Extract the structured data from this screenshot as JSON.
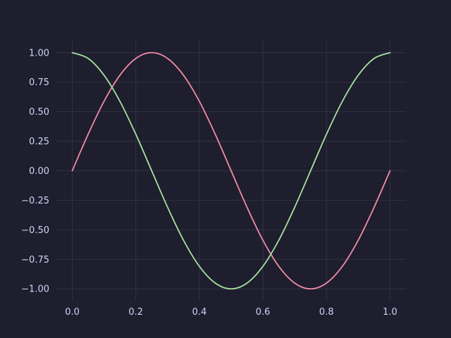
{
  "colors": {
    "background": "#1e1e2e",
    "plot_background": "#1e1e2e",
    "grid": "#313244",
    "text": "#cdd6f4",
    "series_sin": "#f38ba8",
    "series_cos": "#a6e3a1"
  },
  "chart_data": {
    "type": "line",
    "title": "",
    "xlabel": "",
    "ylabel": "",
    "xlim": [
      -0.05,
      1.05
    ],
    "ylim": [
      -1.1,
      1.1
    ],
    "grid": true,
    "legend": "none",
    "x_ticks": [
      {
        "value": 0.0,
        "label": "0.0"
      },
      {
        "value": 0.2,
        "label": "0.2"
      },
      {
        "value": 0.4,
        "label": "0.4"
      },
      {
        "value": 0.6,
        "label": "0.6"
      },
      {
        "value": 0.8,
        "label": "0.8"
      },
      {
        "value": 1.0,
        "label": "1.0"
      }
    ],
    "y_ticks": [
      {
        "value": 1.0,
        "label": "1.00"
      },
      {
        "value": 0.75,
        "label": "0.75"
      },
      {
        "value": 0.5,
        "label": "0.50"
      },
      {
        "value": 0.25,
        "label": "0.25"
      },
      {
        "value": 0.0,
        "label": "0.00"
      },
      {
        "value": -0.25,
        "label": "−0.25"
      },
      {
        "value": -0.5,
        "label": "−0.50"
      },
      {
        "value": -0.75,
        "label": "−0.75"
      },
      {
        "value": -1.0,
        "label": "−1.00"
      }
    ],
    "x": [
      0.0,
      0.05,
      0.1,
      0.15,
      0.2,
      0.25,
      0.3,
      0.35,
      0.4,
      0.45,
      0.5,
      0.55,
      0.6,
      0.65,
      0.7,
      0.75,
      0.8,
      0.85,
      0.9,
      0.95,
      1.0
    ],
    "series": [
      {
        "values": [
          0.0,
          0.309,
          0.588,
          0.809,
          0.951,
          1.0,
          0.951,
          0.809,
          0.588,
          0.309,
          0.0,
          -0.309,
          -0.588,
          -0.809,
          -0.951,
          -1.0,
          -0.951,
          -0.809,
          -0.588,
          -0.309,
          0.0
        ]
      },
      {
        "values": [
          1.0,
          0.951,
          0.809,
          0.588,
          0.309,
          0.0,
          -0.309,
          -0.588,
          -0.809,
          -0.951,
          -1.0,
          -0.951,
          -0.809,
          -0.588,
          -0.309,
          0.0,
          0.309,
          0.588,
          0.809,
          0.951,
          1.0
        ]
      }
    ]
  }
}
